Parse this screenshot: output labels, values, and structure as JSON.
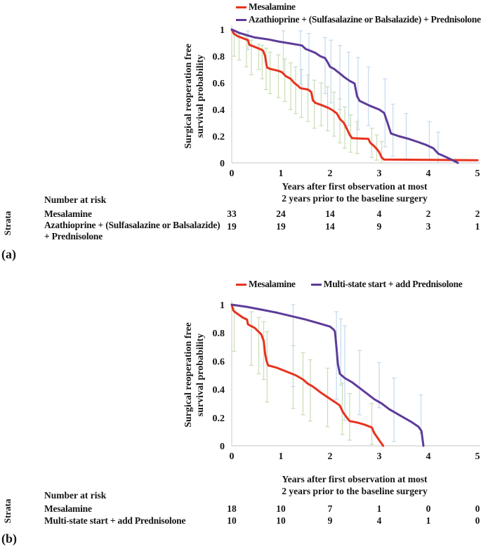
{
  "panel_a": {
    "panel_label": "(a)",
    "risk_table": {
      "title": "Number at risk",
      "strata_label": "Strata",
      "rows": [
        {
          "label_lines": [
            "Mesalamine"
          ],
          "counts": [
            "33",
            "24",
            "14",
            "4",
            "2",
            "2"
          ]
        },
        {
          "label_lines": [
            "Azathioprine + (Sulfasalazine or Balsalazide)",
            "+ Prednisolone"
          ],
          "counts": [
            "19",
            "19",
            "14",
            "9",
            "3",
            "1"
          ]
        }
      ]
    }
  },
  "panel_b": {
    "panel_label": "(b)",
    "risk_table": {
      "title": "Number at risk",
      "strata_label": "Strata",
      "rows": [
        {
          "label_lines": [
            "Mesalamine"
          ],
          "counts": [
            "18",
            "10",
            "7",
            "1",
            "0",
            "0"
          ]
        },
        {
          "label_lines": [
            "Multi-state start + add Prednisolone"
          ],
          "counts": [
            "10",
            "10",
            "9",
            "4",
            "1",
            "0"
          ]
        }
      ]
    }
  },
  "chart_data": [
    {
      "type": "line",
      "title": "",
      "xlabel_lines": [
        "Years after first observation at most",
        "2 years prior to the baseline surgery"
      ],
      "ylabel_lines": [
        "Surgical reoperation free",
        "survival probability"
      ],
      "xlim": [
        0,
        5
      ],
      "ylim": [
        0,
        1
      ],
      "x_ticks": [
        "0",
        "1",
        "2",
        "3",
        "4",
        "5"
      ],
      "y_ticks": [
        "0",
        "0.2",
        "0.4",
        "0.6",
        "0.8",
        "1"
      ],
      "axis_color": "#d9d9d9",
      "legend_position": "top",
      "grid": false,
      "series": [
        {
          "name": "Mesalamine",
          "color": "#e8321e",
          "points": [
            [
              0,
              1
            ],
            [
              0.04,
              0.97
            ],
            [
              0.12,
              0.95
            ],
            [
              0.26,
              0.93
            ],
            [
              0.33,
              0.92
            ],
            [
              0.36,
              0.885
            ],
            [
              0.5,
              0.865
            ],
            [
              0.6,
              0.85
            ],
            [
              0.64,
              0.84
            ],
            [
              0.68,
              0.8
            ],
            [
              0.7,
              0.75
            ],
            [
              0.72,
              0.715
            ],
            [
              0.78,
              0.705
            ],
            [
              0.95,
              0.69
            ],
            [
              1.02,
              0.68
            ],
            [
              1.1,
              0.65
            ],
            [
              1.2,
              0.63
            ],
            [
              1.27,
              0.6
            ],
            [
              1.34,
              0.58
            ],
            [
              1.4,
              0.56
            ],
            [
              1.55,
              0.55
            ],
            [
              1.62,
              0.53
            ],
            [
              1.65,
              0.47
            ],
            [
              1.7,
              0.45
            ],
            [
              1.85,
              0.43
            ],
            [
              1.98,
              0.41
            ],
            [
              2.07,
              0.39
            ],
            [
              2.14,
              0.37
            ],
            [
              2.2,
              0.33
            ],
            [
              2.28,
              0.3
            ],
            [
              2.35,
              0.25
            ],
            [
              2.4,
              0.21
            ],
            [
              2.45,
              0.185
            ],
            [
              2.78,
              0.18
            ],
            [
              2.82,
              0.15
            ],
            [
              2.9,
              0.125
            ],
            [
              2.96,
              0.1
            ],
            [
              3.0,
              0.08
            ],
            [
              3.05,
              0.04
            ],
            [
              3.1,
              0.025
            ],
            [
              5,
              0.02
            ]
          ]
        },
        {
          "name": "Azathioprine + (Sulfasalazine or Balsalazide) + Prednisolone",
          "color": "#5e3c99",
          "points": [
            [
              0,
              1
            ],
            [
              0.15,
              0.975
            ],
            [
              0.47,
              0.94
            ],
            [
              0.75,
              0.925
            ],
            [
              0.95,
              0.91
            ],
            [
              1.19,
              0.895
            ],
            [
              1.43,
              0.88
            ],
            [
              1.5,
              0.855
            ],
            [
              1.6,
              0.84
            ],
            [
              1.7,
              0.825
            ],
            [
              1.8,
              0.8
            ],
            [
              1.9,
              0.785
            ],
            [
              1.95,
              0.755
            ],
            [
              2.0,
              0.72
            ],
            [
              2.08,
              0.705
            ],
            [
              2.2,
              0.67
            ],
            [
              2.3,
              0.64
            ],
            [
              2.4,
              0.615
            ],
            [
              2.5,
              0.595
            ],
            [
              2.55,
              0.5
            ],
            [
              2.6,
              0.465
            ],
            [
              2.8,
              0.43
            ],
            [
              3.0,
              0.4
            ],
            [
              3.1,
              0.375
            ],
            [
              3.17,
              0.3
            ],
            [
              3.24,
              0.22
            ],
            [
              3.4,
              0.2
            ],
            [
              3.6,
              0.18
            ],
            [
              3.8,
              0.155
            ],
            [
              3.95,
              0.135
            ],
            [
              4.1,
              0.11
            ],
            [
              4.2,
              0.07
            ],
            [
              4.35,
              0.045
            ],
            [
              4.55,
              0.01
            ],
            [
              4.6,
              0
            ]
          ]
        }
      ],
      "error_bars": [
        {
          "name": "mesalamine-ci",
          "color": "#ccdfb8",
          "bars": [
            [
              0.05,
              0.8,
              0.99
            ],
            [
              0.15,
              0.77,
              0.97
            ],
            [
              0.3,
              0.72,
              0.95
            ],
            [
              0.4,
              0.66,
              0.92
            ],
            [
              0.55,
              0.7,
              0.89
            ],
            [
              0.62,
              0.63,
              0.88
            ],
            [
              0.7,
              0.55,
              0.86
            ],
            [
              0.78,
              0.52,
              0.83
            ],
            [
              0.95,
              0.49,
              0.81
            ],
            [
              1.08,
              0.46,
              0.78
            ],
            [
              1.2,
              0.4,
              0.75
            ],
            [
              1.3,
              0.37,
              0.72
            ],
            [
              1.42,
              0.34,
              0.7
            ],
            [
              1.55,
              0.31,
              0.66
            ],
            [
              1.68,
              0.26,
              0.62
            ],
            [
              1.82,
              0.28,
              0.6
            ],
            [
              1.95,
              0.24,
              0.57
            ],
            [
              2.08,
              0.2,
              0.53
            ],
            [
              2.2,
              0.15,
              0.48
            ],
            [
              2.3,
              0.11,
              0.42
            ],
            [
              2.42,
              0.08,
              0.36
            ],
            [
              2.55,
              0.07,
              0.31
            ],
            [
              2.85,
              0.04,
              0.26
            ],
            [
              2.95,
              0.02,
              0.21
            ],
            [
              3.05,
              0,
              0.16
            ]
          ]
        },
        {
          "name": "azathioprine-ci",
          "color": "#c7dcef",
          "bars": [
            [
              0.33,
              0.85,
              0.99
            ],
            [
              1.05,
              0.68,
              0.99
            ],
            [
              1.4,
              0.59,
              0.99
            ],
            [
              1.57,
              0.55,
              0.97
            ],
            [
              1.9,
              0.52,
              0.94
            ],
            [
              2.02,
              0.45,
              0.92
            ],
            [
              2.2,
              0.4,
              0.88
            ],
            [
              2.38,
              0.28,
              0.83
            ],
            [
              2.57,
              0.25,
              0.79
            ],
            [
              2.78,
              0.28,
              0.72
            ],
            [
              3.12,
              0.12,
              0.63
            ],
            [
              3.28,
              0.05,
              0.44
            ],
            [
              3.55,
              0.03,
              0.37
            ],
            [
              4.02,
              0.02,
              0.31
            ],
            [
              4.2,
              0,
              0.23
            ]
          ]
        }
      ]
    },
    {
      "type": "line",
      "title": "",
      "xlabel_lines": [
        "Years after first observation at most",
        "2 years prior to the baseline surgery"
      ],
      "ylabel_lines": [
        "Surgical reoperation free",
        "survival probability"
      ],
      "xlim": [
        0,
        5
      ],
      "ylim": [
        0,
        1
      ],
      "x_ticks": [
        "0",
        "1",
        "2",
        "3",
        "4",
        "5"
      ],
      "y_ticks": [
        "0",
        "0.2",
        "0.4",
        "0.6",
        "0.8",
        "1"
      ],
      "axis_color": "#d9d9d9",
      "legend_position": "top",
      "grid": false,
      "series": [
        {
          "name": "Mesalamine",
          "color": "#e8321e",
          "points": [
            [
              0,
              1
            ],
            [
              0.03,
              0.96
            ],
            [
              0.06,
              0.95
            ],
            [
              0.22,
              0.91
            ],
            [
              0.31,
              0.895
            ],
            [
              0.33,
              0.86
            ],
            [
              0.47,
              0.835
            ],
            [
              0.6,
              0.79
            ],
            [
              0.65,
              0.745
            ],
            [
              0.68,
              0.65
            ],
            [
              0.71,
              0.6
            ],
            [
              0.74,
              0.57
            ],
            [
              0.9,
              0.555
            ],
            [
              1.05,
              0.535
            ],
            [
              1.3,
              0.5
            ],
            [
              1.45,
              0.47
            ],
            [
              1.55,
              0.44
            ],
            [
              1.65,
              0.42
            ],
            [
              1.8,
              0.38
            ],
            [
              1.95,
              0.345
            ],
            [
              2.1,
              0.31
            ],
            [
              2.2,
              0.285
            ],
            [
              2.26,
              0.24
            ],
            [
              2.32,
              0.21
            ],
            [
              2.4,
              0.175
            ],
            [
              2.55,
              0.165
            ],
            [
              2.7,
              0.15
            ],
            [
              2.85,
              0.13
            ],
            [
              2.9,
              0.09
            ],
            [
              3.0,
              0.04
            ],
            [
              3.08,
              0
            ]
          ]
        },
        {
          "name": "Multi-state start + add Prednisolone",
          "color": "#5e3c99",
          "points": [
            [
              0,
              1
            ],
            [
              0.3,
              0.985
            ],
            [
              0.6,
              0.965
            ],
            [
              0.9,
              0.945
            ],
            [
              1.2,
              0.92
            ],
            [
              1.5,
              0.895
            ],
            [
              1.8,
              0.865
            ],
            [
              2.0,
              0.845
            ],
            [
              2.07,
              0.825
            ],
            [
              2.1,
              0.81
            ],
            [
              2.13,
              0.7
            ],
            [
              2.16,
              0.58
            ],
            [
              2.2,
              0.51
            ],
            [
              2.3,
              0.48
            ],
            [
              2.45,
              0.45
            ],
            [
              2.6,
              0.41
            ],
            [
              2.75,
              0.37
            ],
            [
              2.9,
              0.33
            ],
            [
              3.05,
              0.3
            ],
            [
              3.2,
              0.26
            ],
            [
              3.35,
              0.23
            ],
            [
              3.5,
              0.2
            ],
            [
              3.65,
              0.17
            ],
            [
              3.8,
              0.135
            ],
            [
              3.86,
              0.105
            ],
            [
              3.9,
              0
            ]
          ]
        }
      ],
      "error_bars": [
        {
          "name": "mesalamine-ci",
          "color": "#ccdfb8",
          "bars": [
            [
              0.05,
              0.67,
              1.0
            ],
            [
              0.4,
              0.57,
              0.95
            ],
            [
              0.55,
              0.51,
              0.91
            ],
            [
              0.65,
              0.47,
              0.88
            ],
            [
              0.72,
              0.31,
              0.81
            ],
            [
              1.25,
              0.265,
              0.71
            ],
            [
              1.45,
              0.22,
              0.66
            ],
            [
              1.6,
              0.175,
              0.61
            ],
            [
              1.95,
              0.135,
              0.55
            ],
            [
              2.25,
              0.08,
              0.445
            ],
            [
              2.4,
              0.04,
              0.37
            ],
            [
              2.85,
              0.01,
              0.3
            ]
          ]
        },
        {
          "name": "multistate-ci",
          "color": "#c7dcef",
          "bars": [
            [
              1.25,
              0.42,
              1.0
            ],
            [
              2.13,
              0.33,
              0.95
            ],
            [
              2.22,
              0.43,
              0.9
            ],
            [
              2.3,
              0.18,
              0.85
            ],
            [
              2.6,
              0.22,
              0.675
            ],
            [
              3.0,
              0.27,
              0.59
            ],
            [
              3.3,
              0.03,
              0.48
            ],
            [
              3.85,
              0.09,
              0.36
            ]
          ]
        }
      ]
    }
  ]
}
